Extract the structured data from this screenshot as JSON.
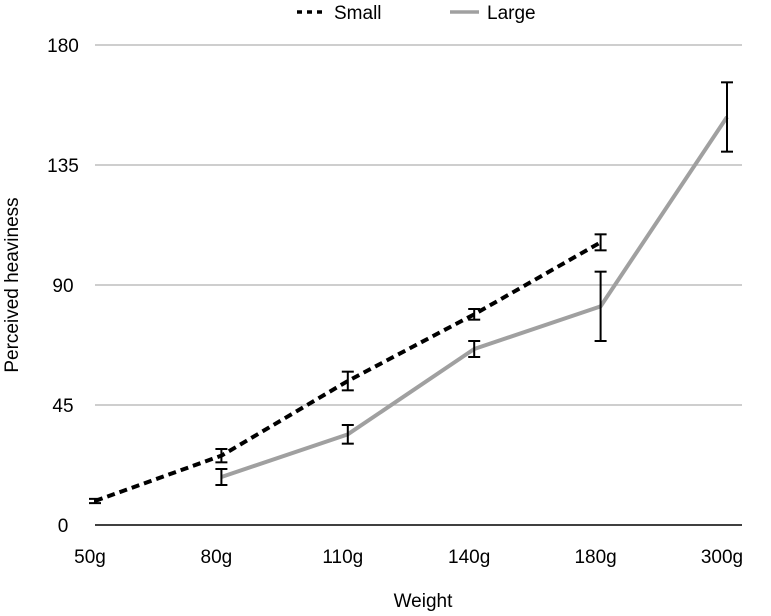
{
  "chart_data": {
    "type": "line",
    "title": "",
    "xlabel": "Weight",
    "ylabel": "Perceived heaviness",
    "categories": [
      "50g",
      "80g",
      "110g",
      "140g",
      "180g",
      "300g"
    ],
    "ylim": [
      0,
      180
    ],
    "yticks": [
      0,
      45,
      90,
      135,
      180
    ],
    "grid": "horizontal",
    "legend": "top",
    "series": [
      {
        "name": "Small",
        "style": "dotted",
        "color": "#000000",
        "values": [
          9,
          26,
          54,
          79,
          106,
          null
        ],
        "errors": [
          0.8,
          2.5,
          3.5,
          2,
          3,
          null
        ]
      },
      {
        "name": "Large",
        "style": "solid",
        "color": "#a0a0a0",
        "values": [
          null,
          18,
          34,
          66,
          82,
          153
        ],
        "errors": [
          null,
          3,
          3.5,
          3,
          13,
          13
        ]
      }
    ]
  }
}
